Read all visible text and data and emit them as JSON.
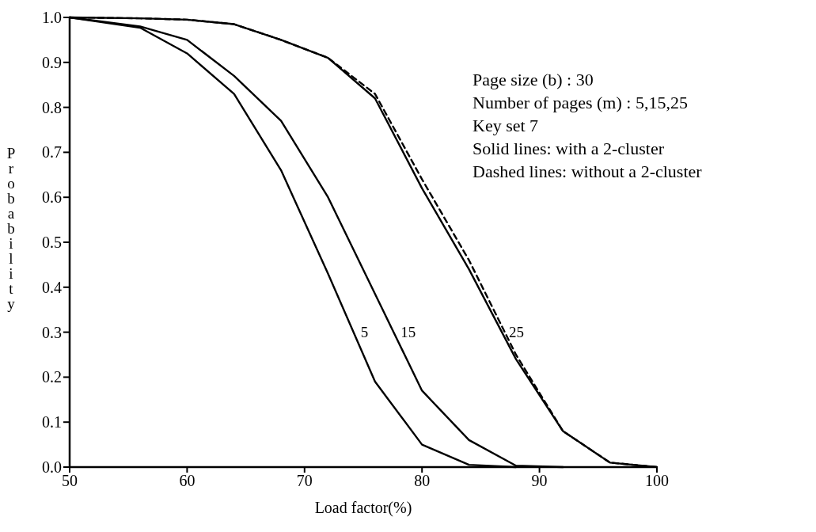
{
  "chart_data": {
    "type": "line",
    "xlabel": "Load factor(%)",
    "ylabel": "Probability",
    "x": [
      50,
      56,
      60,
      64,
      68,
      72,
      76,
      80,
      84,
      88,
      92,
      96,
      100
    ],
    "series": [
      {
        "name": "5",
        "color": "#000000",
        "line_style": "solid",
        "x": [
          50,
          56,
          60,
          64,
          68,
          72,
          76,
          80,
          84,
          88
        ],
        "values": [
          1.0,
          0.977,
          0.92,
          0.83,
          0.66,
          0.43,
          0.19,
          0.05,
          0.005,
          0.0
        ]
      },
      {
        "name": "15",
        "color": "#000000",
        "line_style": "solid",
        "x": [
          50,
          56,
          60,
          64,
          68,
          72,
          76,
          80,
          84,
          88,
          92
        ],
        "values": [
          1.0,
          0.98,
          0.95,
          0.87,
          0.77,
          0.6,
          0.385,
          0.17,
          0.06,
          0.003,
          0.0
        ]
      },
      {
        "name": "25",
        "color": "#000000",
        "line_style": "solid",
        "values": [
          1.0,
          0.998,
          0.995,
          0.985,
          0.95,
          0.91,
          0.82,
          0.62,
          0.44,
          0.24,
          0.08,
          0.01,
          0.0
        ]
      },
      {
        "color": "#000000",
        "line_style": "dashed",
        "values": [
          1.0,
          0.998,
          0.995,
          0.985,
          0.95,
          0.91,
          0.83,
          0.64,
          0.46,
          0.25,
          0.08,
          0.01,
          0.0
        ]
      }
    ],
    "xlim": [
      50,
      100
    ],
    "xticks": [
      50,
      60,
      70,
      80,
      90,
      100
    ],
    "ylim": [
      0,
      1
    ],
    "yticks": [
      {
        "value": 0,
        "label": "0.0"
      },
      0.1,
      0.2,
      0.3,
      0.4,
      0.5,
      0.6,
      0.7,
      0.8,
      0.9,
      {
        "value": 1,
        "label": "1.0"
      }
    ],
    "grid": false,
    "marker": "none",
    "annotations": [
      "Page size (b) : 30",
      "Number of pages (m) : 5,15,25",
      "Key set 7",
      "Solid lines: with a 2-cluster",
      "Dashed lines: without a 2-cluster"
    ]
  }
}
